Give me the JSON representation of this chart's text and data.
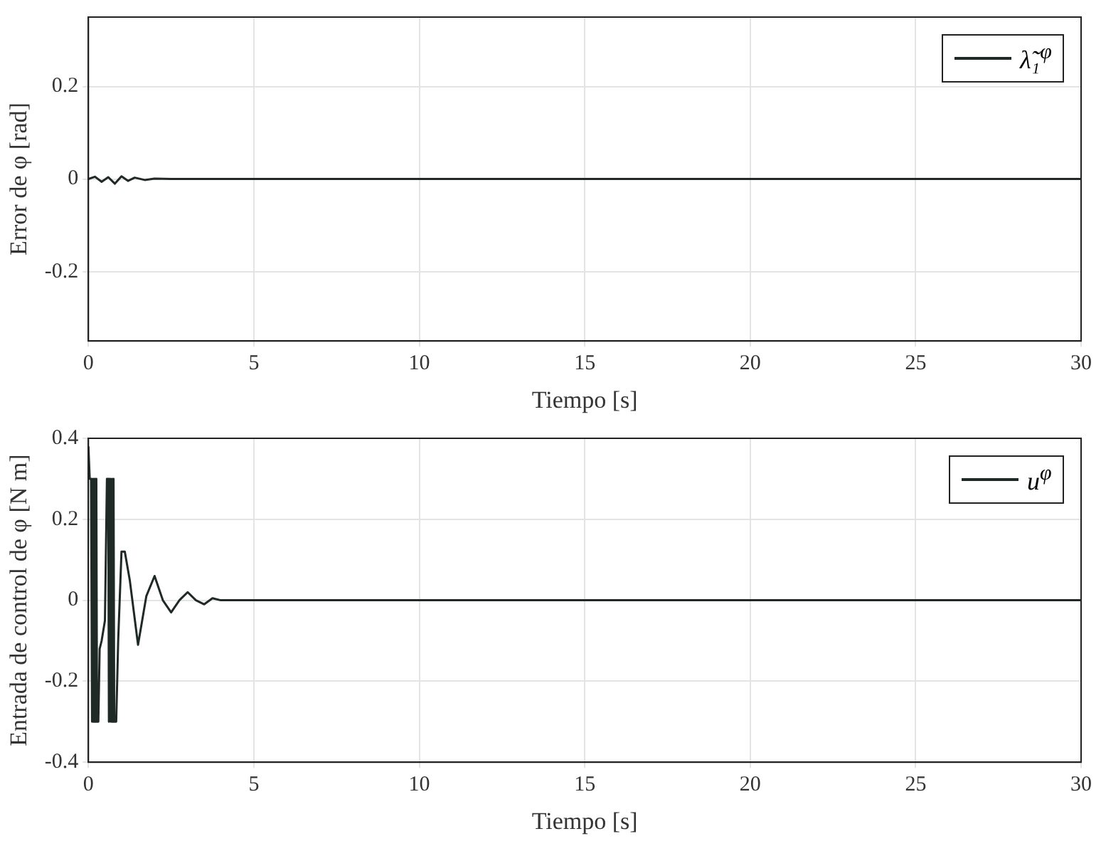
{
  "chart_data": [
    {
      "type": "line",
      "xlabel": "Tiempo [s]",
      "ylabel": "Error de φ [rad]",
      "xlim": [
        0,
        30
      ],
      "xticks": [
        0,
        5,
        10,
        15,
        20,
        25,
        30
      ],
      "ylim": [
        -0.35,
        0.35
      ],
      "yticks": [
        -0.2,
        0,
        0.2
      ],
      "grid": true,
      "legend": "top right",
      "marker": "none",
      "series": [
        {
          "name": "λ̃₁$^{φ}$",
          "color": "#1f2a26",
          "x": [
            0,
            0.2,
            0.4,
            0.6,
            0.8,
            1.0,
            1.2,
            1.4,
            1.7,
            2.0,
            2.5,
            3,
            5,
            10,
            15,
            20,
            25,
            30
          ],
          "values": [
            0,
            0.005,
            -0.006,
            0.004,
            -0.01,
            0.006,
            -0.004,
            0.003,
            -0.002,
            0.001,
            0,
            0,
            0,
            0,
            0,
            0,
            0,
            0
          ]
        }
      ]
    },
    {
      "type": "line",
      "xlabel": "Tiempo [s]",
      "ylabel": "Entrada de control de φ [N m]",
      "xlim": [
        0,
        30
      ],
      "xticks": [
        0,
        5,
        10,
        15,
        20,
        25,
        30
      ],
      "ylim": [
        -0.4,
        0.4
      ],
      "yticks": [
        -0.4,
        -0.2,
        0,
        0.2,
        0.4
      ],
      "grid": true,
      "legend": "top right",
      "marker": "none",
      "series": [
        {
          "name": "u$^{φ}$",
          "color": "#1f2a26",
          "x": [
            0,
            0.04,
            0.08,
            0.1,
            0.12,
            0.14,
            0.16,
            0.18,
            0.2,
            0.22,
            0.24,
            0.26,
            0.3,
            0.34,
            0.4,
            0.5,
            0.56,
            0.6,
            0.62,
            0.64,
            0.66,
            0.68,
            0.7,
            0.72,
            0.74,
            0.76,
            0.78,
            0.8,
            0.84,
            0.9,
            1.0,
            1.1,
            1.25,
            1.5,
            1.75,
            2.0,
            2.25,
            2.5,
            2.75,
            3.0,
            3.25,
            3.5,
            3.75,
            4.0,
            4.5,
            5,
            10,
            15,
            20,
            25,
            30
          ],
          "values": [
            0.38,
            0.3,
            0.3,
            -0.3,
            0.3,
            -0.3,
            0.3,
            -0.3,
            0.3,
            -0.3,
            0.3,
            -0.3,
            -0.3,
            -0.12,
            -0.1,
            -0.05,
            0.3,
            0.3,
            -0.3,
            0.3,
            -0.3,
            0.3,
            -0.3,
            0.3,
            -0.3,
            0.3,
            -0.3,
            -0.3,
            -0.3,
            -0.1,
            0.12,
            0.12,
            0.05,
            -0.11,
            0.01,
            0.06,
            0.0,
            -0.03,
            0.0,
            0.02,
            0.0,
            -0.01,
            0.005,
            0.0,
            0,
            0,
            0,
            0,
            0,
            0,
            0
          ]
        }
      ]
    }
  ]
}
